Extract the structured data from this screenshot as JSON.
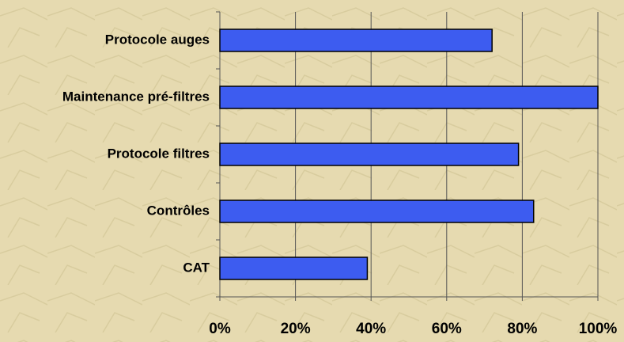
{
  "chart_data": {
    "type": "bar",
    "orientation": "horizontal",
    "categories": [
      "Protocole auges",
      "Maintenance pré-filtres",
      "Protocole filtres",
      "Contrôles",
      "CAT"
    ],
    "values": [
      72,
      100,
      79,
      83,
      39
    ],
    "color": "#3d5cf0",
    "xlim": [
      0,
      100
    ],
    "xticks": [
      {
        "value": 0,
        "label": "0%"
      },
      {
        "value": 20,
        "label": "20%"
      },
      {
        "value": 40,
        "label": "40%"
      },
      {
        "value": 60,
        "label": "60%"
      },
      {
        "value": 80,
        "label": "80%"
      },
      {
        "value": 100,
        "label": "100%"
      }
    ],
    "grid": true
  }
}
